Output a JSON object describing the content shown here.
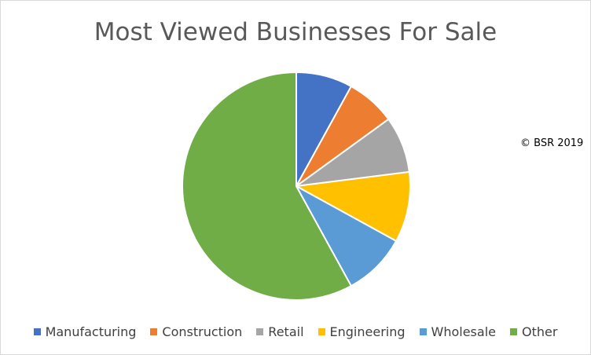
{
  "chart_data": {
    "type": "pie",
    "title": "Most Viewed Businesses For Sale",
    "categories": [
      "Manufacturing",
      "Construction",
      "Retail",
      "Engineering",
      "Wholesale",
      "Other"
    ],
    "values": [
      8,
      7,
      8,
      10,
      9,
      58
    ],
    "unit": "%",
    "colors": [
      "#4472C4",
      "#ED7D31",
      "#A5A5A5",
      "#FFC000",
      "#5B9BD5",
      "#70AD47"
    ],
    "legend_position": "bottom",
    "start_angle": "12 o'clock, clockwise"
  },
  "annotation": {
    "copyright": "© BSR 2019"
  }
}
